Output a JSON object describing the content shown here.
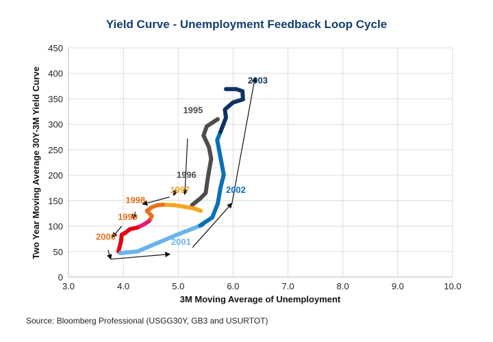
{
  "chart_data": {
    "type": "line",
    "title": "Yield Curve - Unemployment Feedback Loop Cycle",
    "xlabel": "3M Moving Average of Unemployment",
    "ylabel": "Two Year Moving Average 30Y-3M Yield Curve",
    "xlim": [
      3.0,
      10.0
    ],
    "ylim": [
      0,
      450
    ],
    "x_ticks": [
      "3.0",
      "4.0",
      "5.0",
      "6.0",
      "7.0",
      "8.0",
      "9.0",
      "10.0"
    ],
    "x_tick_values": [
      3,
      4,
      5,
      6,
      7,
      8,
      9,
      10
    ],
    "y_ticks": [
      "0",
      "50",
      "100",
      "150",
      "200",
      "250",
      "300",
      "350",
      "400",
      "450"
    ],
    "y_tick_values": [
      0,
      50,
      100,
      150,
      200,
      250,
      300,
      350,
      400,
      450
    ],
    "grid": true,
    "legend": "none",
    "series": [
      {
        "name": "1995-1996",
        "color": "#4d4d4d",
        "x": [
          5.72,
          5.52,
          5.46,
          5.56,
          5.6,
          5.56,
          5.53,
          5.5,
          5.4,
          5.25
        ],
        "y": [
          310,
          296,
          278,
          255,
          232,
          208,
          188,
          165,
          154,
          141
        ]
      },
      {
        "name": "1997",
        "color": "#f5a623",
        "x": [
          5.41,
          5.31,
          5.12,
          4.93,
          4.72
        ],
        "y": [
          130,
          134,
          138,
          141,
          142
        ]
      },
      {
        "name": "1998",
        "color": "#e8701a",
        "x": [
          4.72,
          4.62,
          4.52,
          4.43,
          4.52,
          4.47
        ],
        "y": [
          142,
          141,
          137,
          130,
          120,
          110
        ]
      },
      {
        "name": "1999",
        "color": "#e8197a",
        "x": [
          4.47,
          4.37,
          4.25
        ],
        "y": [
          110,
          103,
          97
        ]
      },
      {
        "name": "2000",
        "color": "#e30613",
        "x": [
          4.25,
          4.12,
          4.04,
          3.97,
          3.96,
          3.91
        ],
        "y": [
          97,
          94,
          87,
          83,
          71,
          50
        ]
      },
      {
        "name": "2001",
        "color": "#6ab4e8",
        "x": [
          3.94,
          4.25,
          4.56,
          4.93,
          5.31,
          5.45
        ],
        "y": [
          47,
          50,
          64,
          81,
          97,
          103
        ]
      },
      {
        "name": "2002",
        "color": "#0b6fb8",
        "x": [
          5.4,
          5.62,
          5.72,
          5.77,
          5.83,
          5.77,
          5.71,
          5.77
        ],
        "y": [
          101,
          117,
          144,
          175,
          201,
          235,
          269,
          285
        ]
      },
      {
        "name": "2003",
        "color": "#0d3460",
        "x": [
          5.77,
          5.87,
          5.85,
          6.0,
          6.18,
          6.17,
          6.06,
          5.87
        ],
        "y": [
          285,
          313,
          329,
          343,
          349,
          365,
          369,
          369
        ]
      }
    ],
    "annotations": [
      {
        "text": "1995",
        "color": "#4d4d4d",
        "x": 5.27,
        "y": 322,
        "arrow_from": [
          5.17,
          272
        ],
        "arrow_to": [
          5.12,
          162
        ]
      },
      {
        "text": "1996",
        "color": "#4d4d4d",
        "x": 5.15,
        "y": 195,
        "arrow_from": [
          4.95,
          172
        ],
        "arrow_to": [
          4.92,
          160
        ]
      },
      {
        "text": "1997",
        "color": "#f5a623",
        "x": 5.03,
        "y": 165,
        "arrow_from": [
          4.84,
          157
        ],
        "arrow_to": [
          4.35,
          143
        ]
      },
      {
        "text": "1998",
        "color": "#e8701a",
        "x": 4.22,
        "y": 145,
        "arrow_from": [
          4.22,
          128
        ],
        "arrow_to": [
          4.18,
          114
        ]
      },
      {
        "text": "1999",
        "color": "#e8701a",
        "x": 4.08,
        "y": 112,
        "arrow_from": [
          3.97,
          100
        ],
        "arrow_to": [
          3.8,
          78
        ]
      },
      {
        "text": "2000",
        "color": "#e8701a",
        "x": 3.68,
        "y": 73,
        "arrow_from": [
          3.72,
          53
        ],
        "arrow_to": [
          3.77,
          35
        ]
      },
      {
        "text": "2001",
        "color": "#6ab4e8",
        "x": 5.05,
        "y": 63,
        "arrow_from": [
          5.26,
          58
        ],
        "arrow_to": [
          5.98,
          145
        ]
      },
      {
        "text": "2002",
        "color": "#0b6fb8",
        "x": 6.05,
        "y": 165,
        "arrow_from": [
          5.98,
          145
        ],
        "arrow_to": [
          6.4,
          392
        ]
      },
      {
        "text": "2003",
        "color": "#0d3460",
        "x": 6.45,
        "y": 380,
        "arrow_from": null,
        "arrow_to": null
      }
    ],
    "extra_arrow": {
      "from": [
        3.77,
        35
      ],
      "to": [
        4.85,
        45
      ]
    }
  },
  "source": "Source: Bloomberg Professional (USGG30Y, GB3 and USURTOT)"
}
